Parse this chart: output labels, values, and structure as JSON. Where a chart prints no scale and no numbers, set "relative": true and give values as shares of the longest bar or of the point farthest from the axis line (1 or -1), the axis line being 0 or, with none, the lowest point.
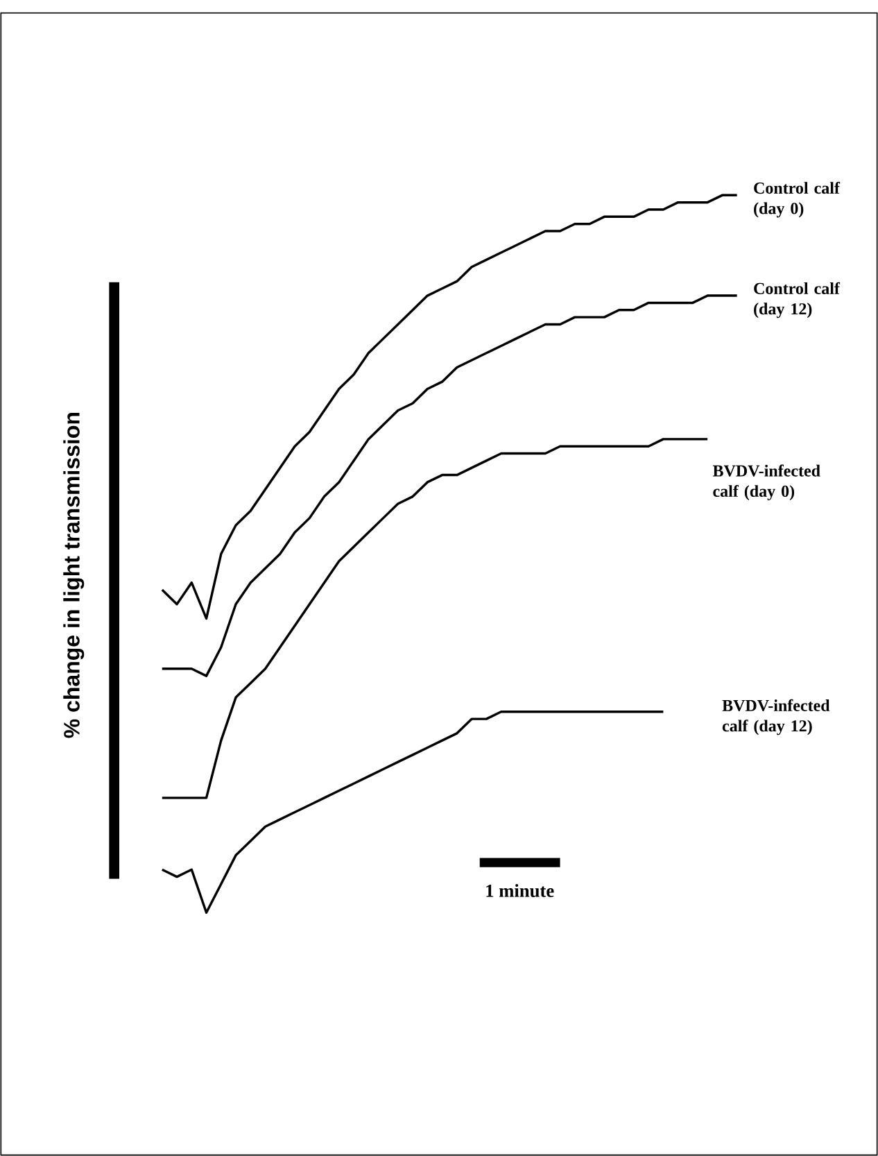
{
  "chart_data": {
    "type": "line",
    "relative": true,
    "marker": "none",
    "ylabel": "% change in light transmission",
    "annotations": [
      "1 minute"
    ],
    "categories": [
      null,
      null,
      null,
      null,
      null,
      null,
      null,
      null,
      null,
      null,
      null,
      null,
      null,
      null,
      null,
      null,
      null,
      null,
      null,
      null,
      null,
      null,
      null,
      null,
      null,
      null,
      null,
      null,
      null,
      null,
      null,
      null,
      null,
      null,
      null,
      null,
      null,
      null,
      null,
      null
    ],
    "series": [
      {
        "name": "Control calf (day 0)",
        "color": "#000000",
        "values": [
          0.45,
          0.43,
          0.46,
          0.41,
          0.5,
          0.54,
          0.56,
          0.59,
          0.62,
          0.65,
          0.67,
          0.7,
          0.73,
          0.75,
          0.78,
          0.8,
          0.82,
          0.84,
          0.86,
          0.87,
          0.88,
          0.9,
          0.91,
          0.92,
          0.93,
          0.94,
          0.95,
          0.95,
          0.96,
          0.96,
          0.97,
          0.97,
          0.97,
          0.98,
          0.98,
          0.99,
          0.99,
          0.99,
          1.0,
          1.0
        ]
      },
      {
        "name": "Control calf (day 12)",
        "color": "#000000",
        "values": [
          0.34,
          0.34,
          0.34,
          0.33,
          0.37,
          0.43,
          0.46,
          0.48,
          0.5,
          0.53,
          0.55,
          0.58,
          0.6,
          0.63,
          0.66,
          0.68,
          0.7,
          0.71,
          0.73,
          0.74,
          0.76,
          0.77,
          0.78,
          0.79,
          0.8,
          0.81,
          0.82,
          0.82,
          0.83,
          0.83,
          0.83,
          0.84,
          0.84,
          0.85,
          0.85,
          0.85,
          0.85,
          0.86,
          0.86,
          0.86
        ]
      },
      {
        "name": "BVDV-infected calf (day 0)",
        "color": "#000000",
        "values": [
          0.16,
          0.16,
          0.16,
          0.16,
          0.24,
          0.3,
          0.32,
          0.34,
          0.37,
          0.4,
          0.43,
          0.46,
          0.49,
          0.51,
          0.53,
          0.55,
          0.57,
          0.58,
          0.6,
          0.61,
          0.61,
          0.62,
          0.63,
          0.64,
          0.64,
          0.64,
          0.64,
          0.65,
          0.65,
          0.65,
          0.65,
          0.65,
          0.65,
          0.65,
          0.66,
          0.66,
          0.66,
          0.66,
          null,
          null
        ]
      },
      {
        "name": "BVDV-infected calf (day 12)",
        "color": "#000000",
        "values": [
          0.06,
          0.05,
          0.06,
          0,
          0.04,
          0.08,
          0.1,
          0.12,
          0.13,
          0.14,
          0.15,
          0.16,
          0.17,
          0.18,
          0.19,
          0.2,
          0.21,
          0.22,
          0.23,
          0.24,
          0.25,
          0.27,
          0.27,
          0.28,
          0.28,
          0.28,
          0.28,
          0.28,
          0.28,
          0.28,
          0.28,
          0.28,
          0.28,
          0.28,
          0.28,
          null,
          null,
          null,
          null,
          null
        ]
      }
    ]
  }
}
